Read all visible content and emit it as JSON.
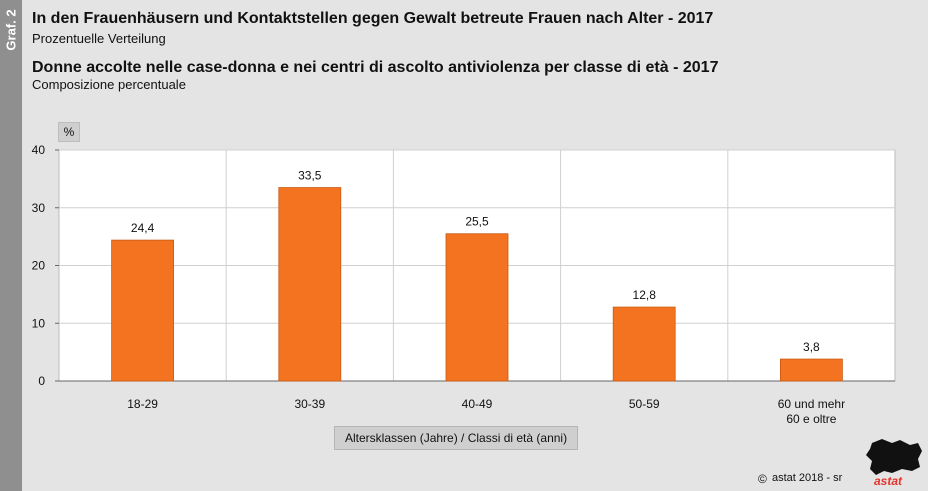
{
  "side_tab": {
    "label": "Graf. 2"
  },
  "header": {
    "title_de": "In den Frauenhäusern und Kontaktstellen gegen Gewalt betreute Frauen nach Alter - 2017",
    "subtitle_de": "Prozentuelle Verteilung",
    "title_it": "Donne accolte nelle case-donna e nei centri di ascolto antiviolenza per classe di età - 2017",
    "subtitle_it": "Composizione percentuale"
  },
  "chart_data": {
    "type": "bar",
    "categories": [
      [
        "18-29"
      ],
      [
        "30-39"
      ],
      [
        "40-49"
      ],
      [
        "50-59"
      ],
      [
        "60 und mehr",
        "60 e oltre"
      ]
    ],
    "values": [
      24.4,
      33.5,
      25.5,
      12.8,
      3.8
    ],
    "value_labels": [
      "24,4",
      "33,5",
      "25,5",
      "12,8",
      "3,8"
    ],
    "y_unit": "%",
    "ylim": [
      0,
      40
    ],
    "yticks": [
      0,
      10,
      20,
      30,
      40
    ],
    "xlabel": "Altersklassen (Jahre) / Classi di età (anni)",
    "grid": true,
    "colors": {
      "bar": "#f47321",
      "bar_border": "#c85a12",
      "plot_bg": "#ffffff",
      "grid": "#d0d0d0"
    }
  },
  "footer": {
    "copyright_symbol": "©",
    "copyright": "astat 2018 - sr",
    "logo_text": "astat",
    "logo_color": "#e3342c"
  }
}
